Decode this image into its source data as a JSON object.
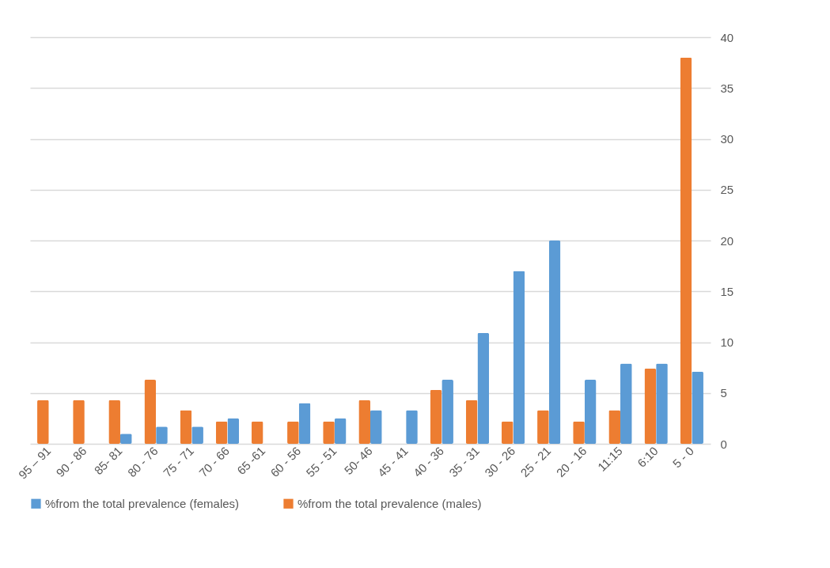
{
  "chart_data": {
    "type": "bar",
    "categories": [
      "95 – 91",
      "90 - 86",
      "85- 81",
      "80 - 76",
      "75 - 71",
      "70 - 66",
      "65 -61",
      "60 - 56",
      "55 - 51",
      "50- 46",
      "45 - 41",
      "40 - 36",
      "35 - 31",
      "30 - 26",
      "25 - 21",
      "20 - 16",
      "11:15",
      "6:10",
      "5 -  0"
    ],
    "series": [
      {
        "name": "%from the total prevalence  (females)",
        "color": "#5b9bd5",
        "values": [
          null,
          null,
          1.0,
          1.7,
          1.7,
          2.5,
          null,
          4.0,
          2.5,
          3.3,
          3.3,
          6.3,
          10.9,
          17,
          20,
          6.3,
          7.9,
          7.9,
          7.1
        ]
      },
      {
        "name": "%from the total prevalence (males)",
        "color": "#ed7d31",
        "values": [
          4.3,
          4.3,
          4.3,
          6.3,
          3.3,
          2.2,
          2.2,
          2.2,
          2.2,
          4.3,
          null,
          5.3,
          4.3,
          2.2,
          3.3,
          2.2,
          3.3,
          7.4,
          38
        ]
      }
    ],
    "ylim": [
      0,
      40
    ],
    "yticks": [
      0,
      5,
      10,
      15,
      20,
      25,
      30,
      35,
      40
    ],
    "grid": "y",
    "legend": "bottom"
  }
}
